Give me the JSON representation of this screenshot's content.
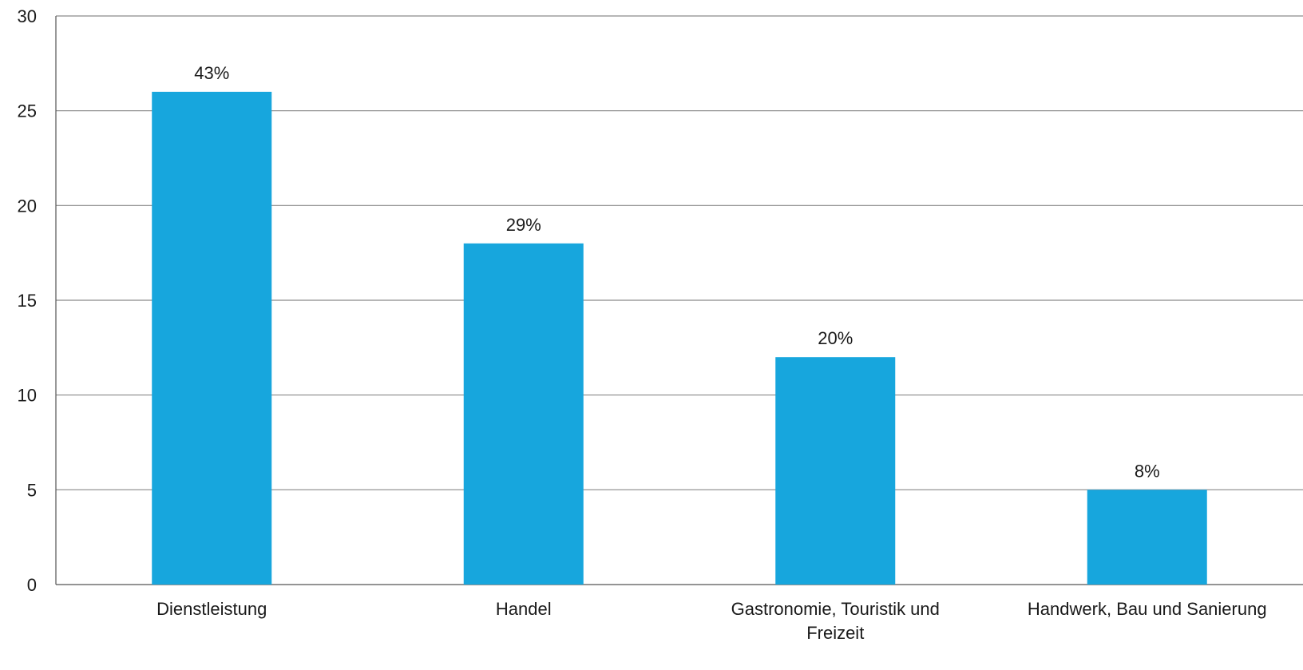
{
  "chart_data": {
    "type": "bar",
    "categories": [
      [
        "Dienstleistung"
      ],
      [
        "Handel"
      ],
      [
        "Gastronomie, Touristik und",
        "Freizeit"
      ],
      [
        "Handwerk, Bau und Sanierung"
      ]
    ],
    "values": [
      26,
      18,
      12,
      5
    ],
    "data_labels": [
      "43%",
      "29%",
      "20%",
      "8%"
    ],
    "ylim": [
      0,
      30
    ],
    "yticks": [
      0,
      5,
      10,
      15,
      20,
      25,
      30
    ],
    "grid": true,
    "legend": false,
    "colors": {
      "bar": "#17a6dd",
      "grid": "#8a8a8a",
      "axis": "#555555",
      "text": "#1a1a1a"
    }
  }
}
